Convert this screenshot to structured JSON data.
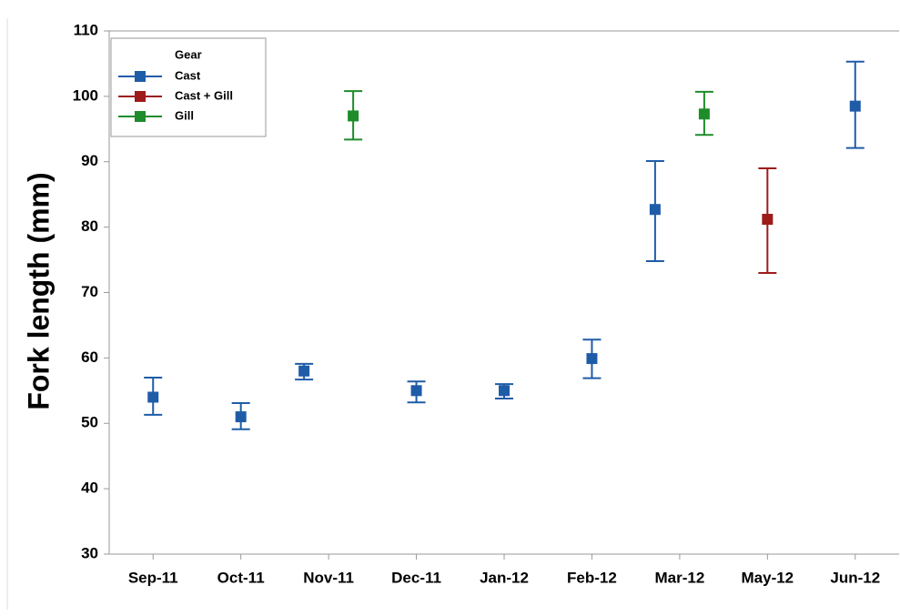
{
  "chart_data": {
    "type": "errorbar",
    "y_label": "Fork length (mm)",
    "legend_title": "Gear",
    "legend_position": "upper left",
    "categories": [
      "Sep-11",
      "Oct-11",
      "Nov-11",
      "Dec-11",
      "Jan-12",
      "Feb-12",
      "Mar-12",
      "May-12",
      "Jun-12"
    ],
    "ylim": [
      30,
      110
    ],
    "yticks": [
      30,
      40,
      50,
      60,
      70,
      80,
      90,
      100,
      110
    ],
    "series": [
      {
        "name": "Cast",
        "color": "#1f5ca8",
        "values": [
          54,
          51,
          58,
          55,
          55,
          59.9,
          82.7,
          null,
          98.5
        ],
        "low": [
          51.3,
          49.1,
          56.7,
          53.2,
          53.8,
          56.9,
          74.8,
          null,
          92.1
        ],
        "high": [
          57.0,
          53.1,
          59.1,
          56.4,
          56.0,
          62.8,
          90.1,
          null,
          105.3
        ]
      },
      {
        "name": "Cast + Gill",
        "color": "#9e1b1b",
        "values": [
          null,
          null,
          null,
          null,
          null,
          null,
          null,
          81.2,
          null
        ],
        "low": [
          null,
          null,
          null,
          null,
          null,
          null,
          null,
          73.0,
          null
        ],
        "high": [
          null,
          null,
          null,
          null,
          null,
          null,
          null,
          89.0,
          null
        ]
      },
      {
        "name": "Gill",
        "color": "#1e8c2a",
        "values": [
          null,
          null,
          97,
          null,
          null,
          null,
          97.3,
          null,
          null
        ],
        "low": [
          null,
          null,
          93.4,
          null,
          null,
          null,
          94.1,
          null,
          null
        ],
        "high": [
          null,
          null,
          100.8,
          null,
          null,
          null,
          100.7,
          null,
          null
        ]
      }
    ]
  }
}
